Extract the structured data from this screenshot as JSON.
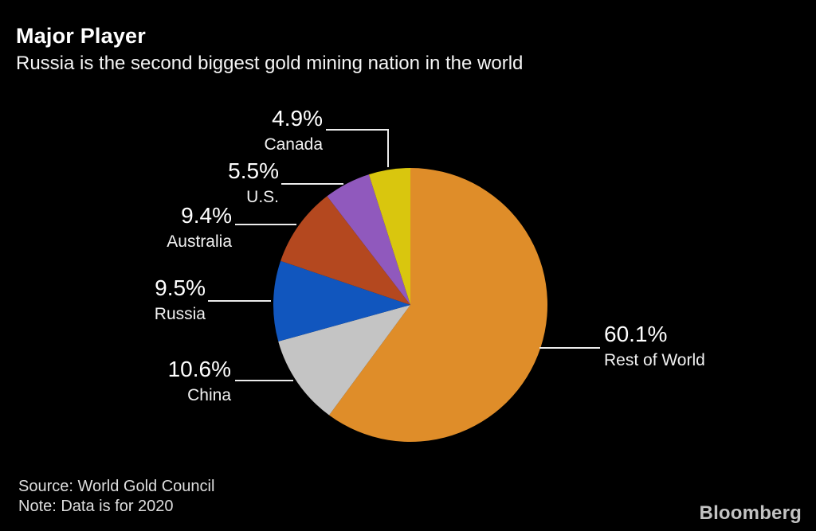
{
  "header": {
    "title": "Major Player",
    "subtitle": "Russia is the second biggest gold mining nation in the world"
  },
  "footer": {
    "source": "Source: World Gold Council",
    "note": "Note: Data is for 2020",
    "brand": "Bloomberg"
  },
  "colors": {
    "background": "#000000",
    "text": "#ffffff",
    "leader_line": "#ececec"
  },
  "chart_data": {
    "type": "pie",
    "title": "Major Player",
    "subtitle": "Russia is the second biggest gold mining nation in the world",
    "unit": "%",
    "start_angle_deg": -90,
    "direction": "clockwise",
    "slices": [
      {
        "label": "Rest of World",
        "value": 60.1,
        "value_label": "60.1%",
        "color": "#DF8D29"
      },
      {
        "label": "China",
        "value": 10.6,
        "value_label": "10.6%",
        "color": "#C4C4C4"
      },
      {
        "label": "Russia",
        "value": 9.5,
        "value_label": "9.5%",
        "color": "#1156BE"
      },
      {
        "label": "Australia",
        "value": 9.4,
        "value_label": "9.4%",
        "color": "#B4481F"
      },
      {
        "label": "U.S.",
        "value": 5.5,
        "value_label": "5.5%",
        "color": "#9059BD"
      },
      {
        "label": "Canada",
        "value": 4.9,
        "value_label": "4.9%",
        "color": "#D9C60E"
      }
    ],
    "legend": "callout-labels",
    "note": "Data is for 2020",
    "source": "World Gold Council"
  }
}
